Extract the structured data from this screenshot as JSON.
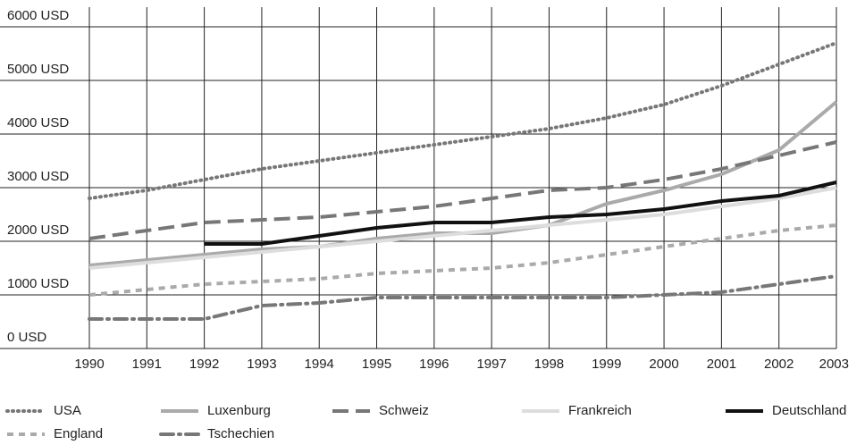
{
  "chart_data": {
    "type": "line",
    "x": [
      1990,
      1991,
      1992,
      1993,
      1994,
      1995,
      1996,
      1997,
      1998,
      1999,
      2000,
      2001,
      2002,
      2003
    ],
    "xlim": [
      1990,
      2003
    ],
    "ylim": [
      0,
      6000
    ],
    "yticks": [
      {
        "value": 0,
        "label": "0 USD"
      },
      {
        "value": 1000,
        "label": "1000 USD"
      },
      {
        "value": 2000,
        "label": "2000 USD"
      },
      {
        "value": 3000,
        "label": "3000 USD"
      },
      {
        "value": 4000,
        "label": "4000 USD"
      },
      {
        "value": 5000,
        "label": "5000 USD"
      },
      {
        "value": 6000,
        "label": "6000 USD"
      }
    ],
    "grid": true,
    "legend": "bottom",
    "series": [
      {
        "name": "USA",
        "color": "#777777",
        "linestyle": "dotted",
        "values": [
          2800,
          2950,
          3150,
          3350,
          3500,
          3650,
          3800,
          3950,
          4100,
          4300,
          4550,
          4900,
          5300,
          5700
        ]
      },
      {
        "name": "Luxenburg",
        "color": "#aaaaaa",
        "linestyle": "solid",
        "values": [
          1550,
          1650,
          1750,
          1850,
          1900,
          2050,
          2150,
          2150,
          2300,
          2700,
          2950,
          3250,
          3700,
          4600
        ]
      },
      {
        "name": "Schweiz",
        "color": "#777777",
        "linestyle": "dashed",
        "values": [
          2050,
          2200,
          2350,
          2400,
          2450,
          2550,
          2650,
          2800,
          2950,
          3000,
          3150,
          3350,
          3600,
          3850
        ]
      },
      {
        "name": "Frankreich",
        "color": "#dddddd",
        "linestyle": "solid",
        "values": [
          1500,
          1600,
          1700,
          1800,
          1900,
          2000,
          2100,
          2200,
          2300,
          2400,
          2500,
          2650,
          2800,
          3000
        ]
      },
      {
        "name": "Deutschland",
        "color": "#111111",
        "linestyle": "solid",
        "values": [
          null,
          null,
          1950,
          1950,
          2100,
          2250,
          2350,
          2350,
          2450,
          2500,
          2600,
          2750,
          2850,
          3100
        ]
      },
      {
        "name": "England",
        "color": "#aaaaaa",
        "linestyle": "shortdash",
        "values": [
          1000,
          1100,
          1200,
          1250,
          1300,
          1400,
          1450,
          1500,
          1600,
          1750,
          1900,
          2050,
          2200,
          2300
        ]
      },
      {
        "name": "Tschechien",
        "color": "#777777",
        "linestyle": "dashdot",
        "values": [
          550,
          550,
          550,
          800,
          850,
          950,
          950,
          950,
          950,
          950,
          1000,
          1050,
          1200,
          1350
        ]
      }
    ]
  }
}
